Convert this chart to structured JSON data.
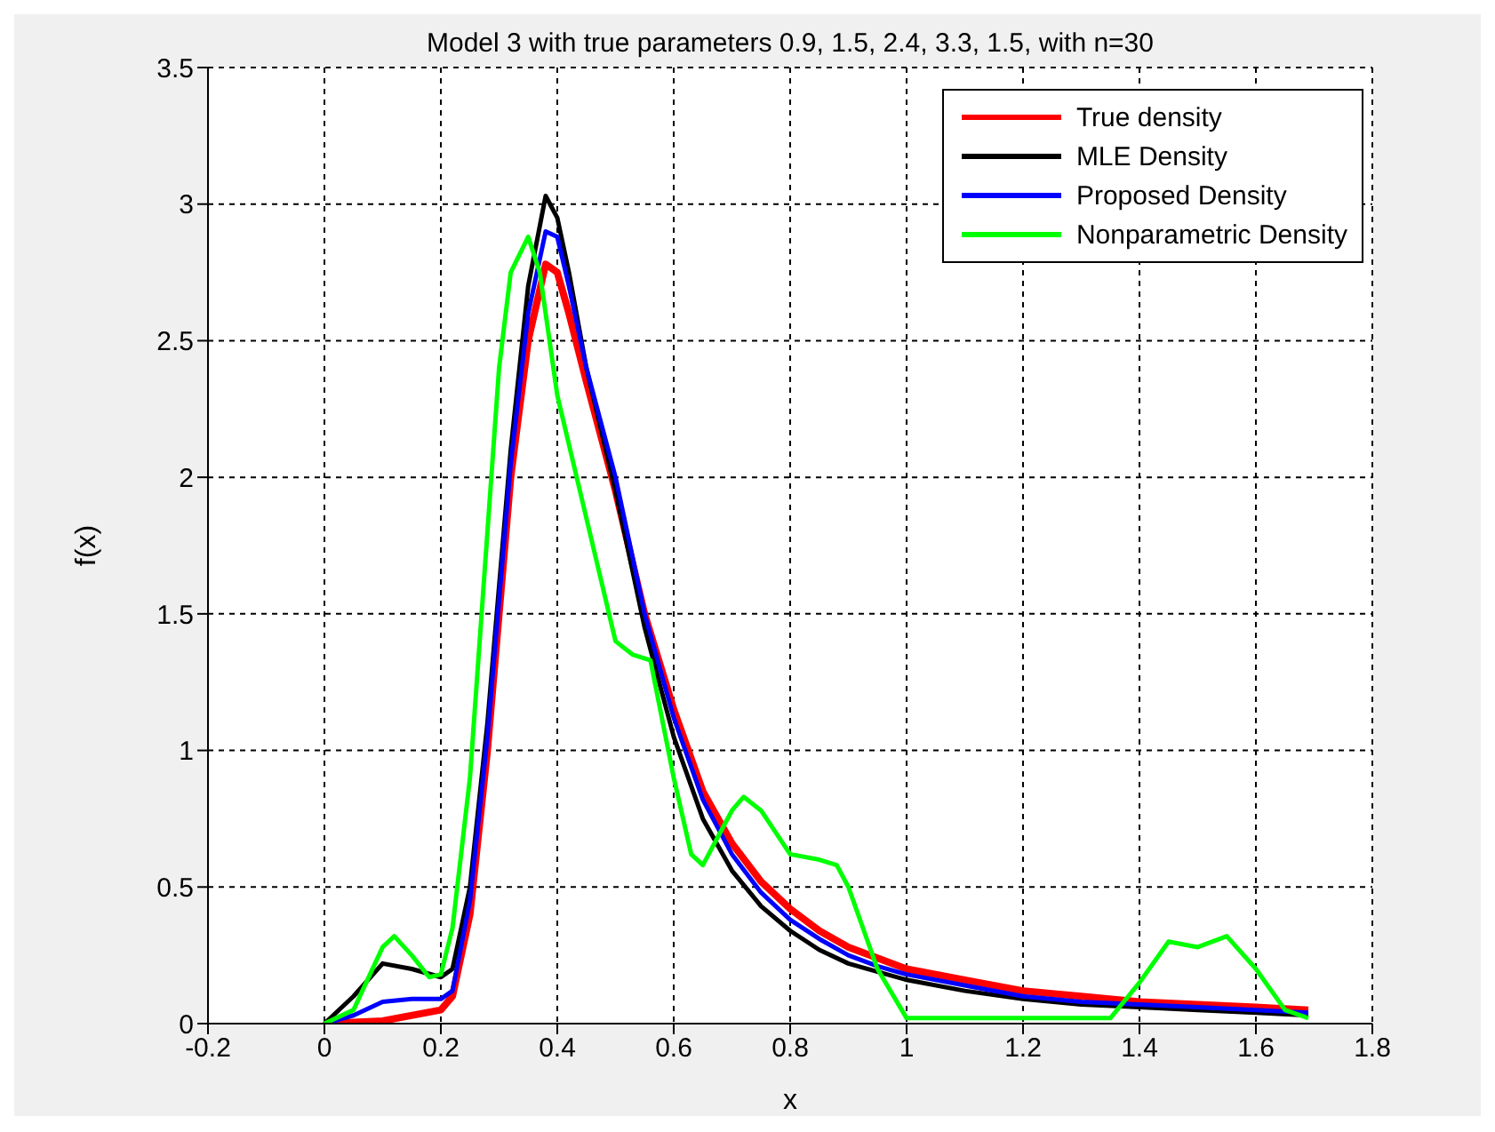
{
  "chart_data": {
    "type": "line",
    "title": "Model 3 with true parameters 0.9, 1.5, 2.4, 3.3, 1.5, with n=30",
    "xlabel": "x",
    "ylabel": "f(x)",
    "xlim": [
      -0.2,
      1.8
    ],
    "xticks": [
      -0.2,
      0,
      0.2,
      0.4,
      0.6,
      0.8,
      1,
      1.2,
      1.4,
      1.6,
      1.8
    ],
    "ylim": [
      0,
      3.5
    ],
    "yticks": [
      0,
      0.5,
      1,
      1.5,
      2,
      2.5,
      3,
      3.5
    ],
    "grid": true,
    "legend": "top right",
    "marker": "none",
    "line_style": "solid",
    "series": [
      {
        "name": "True density",
        "color": "#ff0000",
        "x": [
          0,
          0.1,
          0.2,
          0.22,
          0.25,
          0.28,
          0.3,
          0.32,
          0.35,
          0.38,
          0.4,
          0.42,
          0.45,
          0.5,
          0.55,
          0.6,
          0.65,
          0.7,
          0.75,
          0.8,
          0.85,
          0.9,
          0.95,
          1.0,
          1.1,
          1.2,
          1.3,
          1.4,
          1.5,
          1.6,
          1.69
        ],
        "values": [
          0,
          0.01,
          0.05,
          0.1,
          0.4,
          1.0,
          1.5,
          2.0,
          2.5,
          2.78,
          2.75,
          2.6,
          2.35,
          1.95,
          1.5,
          1.15,
          0.85,
          0.66,
          0.52,
          0.42,
          0.34,
          0.28,
          0.24,
          0.2,
          0.16,
          0.12,
          0.1,
          0.08,
          0.07,
          0.06,
          0.05
        ]
      },
      {
        "name": "MLE Density",
        "color": "#000000",
        "x": [
          0,
          0.05,
          0.1,
          0.15,
          0.2,
          0.22,
          0.25,
          0.28,
          0.3,
          0.32,
          0.35,
          0.38,
          0.4,
          0.42,
          0.45,
          0.5,
          0.55,
          0.6,
          0.65,
          0.7,
          0.75,
          0.8,
          0.85,
          0.9,
          0.95,
          1.0,
          1.1,
          1.2,
          1.3,
          1.4,
          1.5,
          1.6,
          1.69
        ],
        "values": [
          0,
          0.1,
          0.22,
          0.2,
          0.17,
          0.2,
          0.5,
          1.1,
          1.6,
          2.1,
          2.7,
          3.03,
          2.95,
          2.75,
          2.4,
          1.95,
          1.45,
          1.05,
          0.75,
          0.56,
          0.43,
          0.34,
          0.27,
          0.22,
          0.19,
          0.16,
          0.12,
          0.09,
          0.07,
          0.06,
          0.05,
          0.04,
          0.03
        ]
      },
      {
        "name": "Proposed Density",
        "color": "#0000ff",
        "x": [
          0,
          0.05,
          0.1,
          0.15,
          0.2,
          0.22,
          0.25,
          0.28,
          0.3,
          0.32,
          0.35,
          0.38,
          0.4,
          0.42,
          0.45,
          0.5,
          0.55,
          0.6,
          0.65,
          0.7,
          0.75,
          0.8,
          0.85,
          0.9,
          0.95,
          1.0,
          1.1,
          1.2,
          1.3,
          1.4,
          1.5,
          1.6,
          1.69
        ],
        "values": [
          0,
          0.03,
          0.08,
          0.09,
          0.09,
          0.12,
          0.45,
          1.05,
          1.55,
          2.05,
          2.6,
          2.9,
          2.88,
          2.7,
          2.4,
          2.0,
          1.5,
          1.12,
          0.82,
          0.62,
          0.48,
          0.38,
          0.31,
          0.25,
          0.21,
          0.18,
          0.14,
          0.1,
          0.08,
          0.07,
          0.06,
          0.05,
          0.04
        ]
      },
      {
        "name": "Nonparametric Density",
        "color": "#00ff00",
        "x": [
          0,
          0.05,
          0.1,
          0.12,
          0.15,
          0.18,
          0.2,
          0.22,
          0.25,
          0.28,
          0.3,
          0.32,
          0.35,
          0.37,
          0.4,
          0.45,
          0.5,
          0.53,
          0.56,
          0.6,
          0.63,
          0.65,
          0.7,
          0.72,
          0.75,
          0.8,
          0.85,
          0.88,
          0.9,
          0.95,
          1.0,
          1.05,
          1.2,
          1.35,
          1.4,
          1.45,
          1.5,
          1.55,
          1.6,
          1.65,
          1.69
        ],
        "values": [
          0,
          0.05,
          0.28,
          0.32,
          0.25,
          0.17,
          0.18,
          0.35,
          0.9,
          1.8,
          2.4,
          2.75,
          2.88,
          2.75,
          2.3,
          1.85,
          1.4,
          1.35,
          1.33,
          0.9,
          0.62,
          0.58,
          0.78,
          0.83,
          0.78,
          0.62,
          0.6,
          0.58,
          0.5,
          0.2,
          0.02,
          0.02,
          0.02,
          0.02,
          0.15,
          0.3,
          0.28,
          0.32,
          0.2,
          0.05,
          0.02
        ]
      }
    ]
  }
}
